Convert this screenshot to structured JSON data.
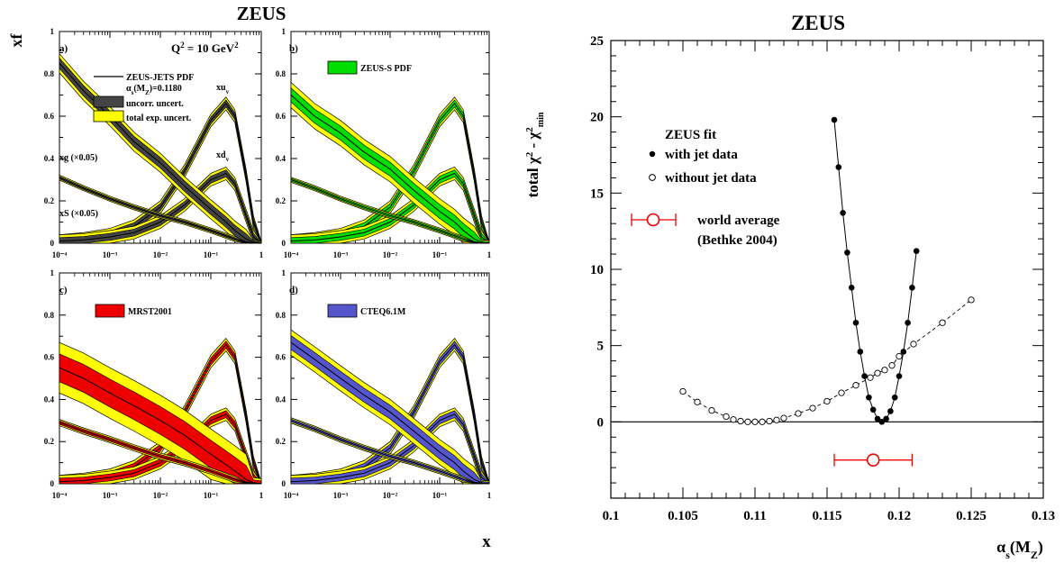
{
  "left_title": "ZEUS",
  "right_title": "ZEUS",
  "left_ylabel": "xf",
  "left_xlabel": "x",
  "panel_labels": [
    "a)",
    "b)",
    "c)",
    "d)"
  ],
  "q2_label": "Q² = 10 GeV²",
  "legend_a": {
    "line": "ZEUS-JETS PDF",
    "alpha": "αs(MZ)=0.1180",
    "uncorr": "uncorr. uncert.",
    "total": "total exp. uncert."
  },
  "legend_b": "ZEUS-S PDF",
  "legend_c": "MRST2001",
  "legend_d": "CTEQ6.1M",
  "curve_labels": {
    "xuv": "xuv",
    "xdv": "xdv",
    "xg": "xg (×0.05)",
    "xS": "xS (×0.05)"
  },
  "x_ticks_pdf": [
    "10⁻⁴",
    "10⁻³",
    "10⁻²",
    "10⁻¹",
    "1"
  ],
  "y_ticks_pdf": [
    "0",
    "0.2",
    "0.4",
    "0.6",
    "0.8",
    "1"
  ],
  "colors": {
    "total_band": "#ffff00",
    "uncorr_band": "#444444",
    "zeus_s_band": "#00dd00",
    "mrst_band": "#ee0000",
    "cteq_band": "#5555cc",
    "world_average": "#ee0000"
  },
  "right": {
    "ylabel": "total χ² - χ²min",
    "xlabel": "αs(MZ)",
    "legend_title": "ZEUS fit",
    "legend_with": "with jet data",
    "legend_without": "without jet data",
    "world_avg_line1": "world average",
    "world_avg_line2": "(Bethke 2004)"
  },
  "chart_data": [
    {
      "type": "line",
      "title": "ZEUS",
      "panel": "a)",
      "ylabel": "xf",
      "xlabel": "x",
      "x_scale": "log",
      "xlim": [
        0.0001,
        1
      ],
      "ylim": [
        0,
        1
      ],
      "x": [
        0.0001,
        0.0003,
        0.001,
        0.003,
        0.01,
        0.03,
        0.1,
        0.2,
        0.3,
        0.5,
        0.7,
        1.0
      ],
      "series": [
        {
          "name": "xuv",
          "values": [
            0.01,
            0.02,
            0.04,
            0.08,
            0.17,
            0.34,
            0.58,
            0.66,
            0.6,
            0.32,
            0.1,
            0.0
          ],
          "band": 0.03
        },
        {
          "name": "xdv",
          "values": [
            0.01,
            0.015,
            0.03,
            0.05,
            0.1,
            0.18,
            0.3,
            0.33,
            0.28,
            0.13,
            0.03,
            0.0
          ],
          "band": 0.03
        },
        {
          "name": "xg (×0.05)",
          "values": [
            0.85,
            0.72,
            0.6,
            0.48,
            0.38,
            0.27,
            0.16,
            0.1,
            0.06,
            0.02,
            0.005,
            0.0
          ],
          "band": 0.045
        },
        {
          "name": "xS (×0.05)",
          "values": [
            0.31,
            0.26,
            0.21,
            0.17,
            0.13,
            0.1,
            0.06,
            0.035,
            0.02,
            0.005,
            0.0,
            0.0
          ],
          "band": 0.012
        }
      ]
    },
    {
      "type": "line",
      "panel": "b)",
      "x_scale": "log",
      "xlim": [
        0.0001,
        1
      ],
      "ylim": [
        0,
        1
      ],
      "x": [
        0.0001,
        0.0003,
        0.001,
        0.003,
        0.01,
        0.03,
        0.1,
        0.2,
        0.3,
        0.5,
        0.7,
        1.0
      ],
      "series": [
        {
          "name": "xuv",
          "values": [
            0.01,
            0.02,
            0.04,
            0.08,
            0.17,
            0.34,
            0.58,
            0.66,
            0.6,
            0.32,
            0.1,
            0.0
          ],
          "band": 0.03
        },
        {
          "name": "xdv",
          "values": [
            0.01,
            0.015,
            0.03,
            0.05,
            0.1,
            0.18,
            0.3,
            0.33,
            0.28,
            0.13,
            0.03,
            0.0
          ],
          "band": 0.03
        },
        {
          "name": "xg (×0.05)",
          "values": [
            0.7,
            0.6,
            0.52,
            0.43,
            0.35,
            0.25,
            0.15,
            0.1,
            0.06,
            0.02,
            0.005,
            0.0
          ],
          "band": 0.06
        },
        {
          "name": "xS (×0.05)",
          "values": [
            0.3,
            0.26,
            0.21,
            0.17,
            0.13,
            0.1,
            0.06,
            0.035,
            0.02,
            0.005,
            0.0,
            0.0
          ],
          "band": 0.012
        }
      ]
    },
    {
      "type": "line",
      "panel": "c)",
      "xlabel": "x",
      "x_scale": "log",
      "xlim": [
        0.0001,
        1
      ],
      "ylim": [
        0,
        1
      ],
      "x": [
        0.0001,
        0.0003,
        0.001,
        0.003,
        0.01,
        0.03,
        0.1,
        0.2,
        0.3,
        0.5,
        0.7,
        1.0
      ],
      "series": [
        {
          "name": "xuv",
          "values": [
            0.01,
            0.02,
            0.04,
            0.08,
            0.17,
            0.34,
            0.58,
            0.66,
            0.6,
            0.32,
            0.1,
            0.0
          ],
          "band": 0.03
        },
        {
          "name": "xdv",
          "values": [
            0.01,
            0.015,
            0.03,
            0.05,
            0.1,
            0.18,
            0.3,
            0.33,
            0.28,
            0.13,
            0.03,
            0.0
          ],
          "band": 0.03
        },
        {
          "name": "xg (×0.05)",
          "values": [
            0.55,
            0.5,
            0.43,
            0.37,
            0.3,
            0.23,
            0.14,
            0.09,
            0.06,
            0.02,
            0.005,
            0.0
          ],
          "band": 0.12
        },
        {
          "name": "xS (×0.05)",
          "values": [
            0.29,
            0.25,
            0.21,
            0.17,
            0.13,
            0.1,
            0.06,
            0.035,
            0.02,
            0.005,
            0.0,
            0.0
          ],
          "band": 0.015
        }
      ]
    },
    {
      "type": "line",
      "panel": "d)",
      "x_scale": "log",
      "xlim": [
        0.0001,
        1
      ],
      "ylim": [
        0,
        1
      ],
      "x": [
        0.0001,
        0.0003,
        0.001,
        0.003,
        0.01,
        0.03,
        0.1,
        0.2,
        0.3,
        0.5,
        0.7,
        1.0
      ],
      "series": [
        {
          "name": "xuv",
          "values": [
            0.01,
            0.02,
            0.04,
            0.08,
            0.17,
            0.34,
            0.58,
            0.66,
            0.6,
            0.32,
            0.1,
            0.0
          ],
          "band": 0.03
        },
        {
          "name": "xdv",
          "values": [
            0.01,
            0.015,
            0.03,
            0.05,
            0.1,
            0.18,
            0.3,
            0.33,
            0.28,
            0.13,
            0.03,
            0.0
          ],
          "band": 0.03
        },
        {
          "name": "xg (×0.05)",
          "values": [
            0.67,
            0.59,
            0.5,
            0.42,
            0.34,
            0.25,
            0.15,
            0.1,
            0.06,
            0.02,
            0.005,
            0.0
          ],
          "band": 0.06
        },
        {
          "name": "xS (×0.05)",
          "values": [
            0.3,
            0.26,
            0.21,
            0.17,
            0.13,
            0.1,
            0.06,
            0.035,
            0.02,
            0.005,
            0.0,
            0.0
          ],
          "band": 0.013
        }
      ]
    },
    {
      "type": "scatter",
      "title": "ZEUS",
      "xlabel": "αs(MZ)",
      "ylabel": "total χ² - χ²min",
      "xlim": [
        0.1,
        0.13
      ],
      "ylim": [
        -5,
        25
      ],
      "x_ticks": [
        0.1,
        0.105,
        0.11,
        0.115,
        0.12,
        0.125,
        0.13
      ],
      "y_ticks": [
        0,
        5,
        10,
        15,
        20,
        25
      ],
      "series": [
        {
          "name": "with jet data",
          "marker": "filled-circle",
          "line": "solid",
          "x": [
            0.1155,
            0.1158,
            0.1161,
            0.1164,
            0.1167,
            0.117,
            0.1173,
            0.1176,
            0.1179,
            0.1182,
            0.1185,
            0.1188,
            0.1191,
            0.1194,
            0.1197,
            0.12,
            0.1203,
            0.1206,
            0.1209,
            0.1212
          ],
          "y": [
            19.8,
            16.7,
            13.7,
            11.1,
            8.8,
            6.5,
            4.6,
            3.0,
            1.6,
            0.8,
            0.2,
            0.0,
            0.2,
            0.7,
            1.6,
            3.0,
            4.6,
            6.5,
            8.8,
            11.2
          ]
        },
        {
          "name": "without jet data",
          "marker": "open-circle",
          "line": "dashed",
          "x": [
            0.105,
            0.106,
            0.107,
            0.108,
            0.1085,
            0.109,
            0.1095,
            0.11,
            0.1105,
            0.111,
            0.1115,
            0.112,
            0.113,
            0.114,
            0.115,
            0.116,
            0.117,
            0.118,
            0.1185,
            0.119,
            0.1195,
            0.12,
            0.121,
            0.123,
            0.125
          ],
          "y": [
            2.0,
            1.3,
            0.75,
            0.35,
            0.15,
            0.05,
            0.0,
            0.0,
            0.0,
            0.05,
            0.12,
            0.25,
            0.55,
            0.9,
            1.35,
            1.9,
            2.4,
            2.9,
            3.2,
            3.4,
            3.7,
            4.3,
            5.1,
            6.5,
            8.0
          ]
        }
      ],
      "world_average": {
        "value": 0.1182,
        "error": 0.0027
      }
    }
  ]
}
